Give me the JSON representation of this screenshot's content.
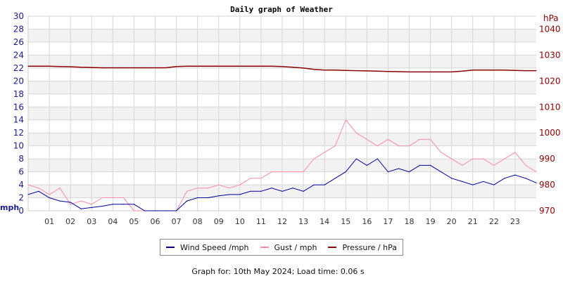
{
  "chart_data": {
    "type": "line",
    "title": "Daily graph of Weather",
    "xlabel": "",
    "ylabel_left": "mph",
    "ylabel_right": "hPa",
    "xlim": [
      0,
      24
    ],
    "ylim_left": [
      0,
      30
    ],
    "ylim_right": [
      970,
      1045
    ],
    "x_ticks": [
      "01",
      "02",
      "03",
      "04",
      "05",
      "06",
      "07",
      "08",
      "09",
      "10",
      "11",
      "12",
      "13",
      "14",
      "15",
      "16",
      "17",
      "18",
      "19",
      "20",
      "21",
      "22",
      "23"
    ],
    "y_ticks_left": [
      0,
      2,
      4,
      6,
      8,
      10,
      12,
      14,
      16,
      18,
      20,
      22,
      24,
      26,
      28,
      30
    ],
    "y_ticks_right": [
      970,
      980,
      990,
      1000,
      1010,
      1020,
      1030,
      1040
    ],
    "grid": true,
    "legend_position": "bottom",
    "x": [
      0,
      0.5,
      1,
      1.5,
      2,
      2.5,
      3,
      3.5,
      4,
      4.5,
      5,
      5.5,
      6,
      6.5,
      7,
      7.5,
      8,
      8.5,
      9,
      9.5,
      10,
      10.5,
      11,
      11.5,
      12,
      12.5,
      13,
      13.5,
      14,
      14.5,
      15,
      15.5,
      16,
      16.5,
      17,
      17.5,
      18,
      18.5,
      19,
      19.5,
      20,
      20.5,
      21,
      21.5,
      22,
      22.5,
      23,
      23.5,
      24
    ],
    "series": [
      {
        "name": "Wind Speed /mph",
        "axis": "left",
        "color": "#000099",
        "values": [
          2.5,
          3,
          2,
          1.5,
          1.3,
          0.3,
          0.5,
          0.7,
          1,
          1,
          1,
          0,
          0,
          0,
          0,
          1.5,
          2,
          2,
          2.3,
          2.5,
          2.5,
          3,
          3,
          3.5,
          3,
          3.5,
          3,
          4,
          4,
          5,
          6,
          8,
          7,
          8,
          6,
          6.5,
          6,
          7,
          7,
          6,
          5,
          4.5,
          4,
          4.5,
          4,
          5,
          5.5,
          5,
          4.3
        ]
      },
      {
        "name": "Gust / mph",
        "axis": "left",
        "color": "#ff88aa",
        "values": [
          4,
          3.5,
          2.5,
          3.5,
          1,
          1.5,
          1,
          2,
          2,
          2,
          0,
          0,
          0,
          0,
          0,
          3,
          3.5,
          3.5,
          4,
          3.5,
          4,
          5,
          5,
          6,
          6,
          6,
          6,
          8,
          9,
          10,
          14,
          12,
          11,
          10,
          11,
          10,
          10,
          11,
          11,
          9,
          8,
          7,
          8,
          8,
          7,
          8,
          9,
          7,
          6
        ]
      },
      {
        "name": "Pressure / hPa",
        "axis": "right",
        "color": "#8b0000",
        "values": [
          1025.7,
          1025.7,
          1025.7,
          1025.6,
          1025.5,
          1025.3,
          1025.2,
          1025.1,
          1025.1,
          1025.1,
          1025.1,
          1025.1,
          1025.1,
          1025.1,
          1025.6,
          1025.7,
          1025.7,
          1025.7,
          1025.7,
          1025.7,
          1025.7,
          1025.7,
          1025.7,
          1025.7,
          1025.6,
          1025.3,
          1025,
          1024.5,
          1024.2,
          1024.2,
          1024.1,
          1024,
          1023.9,
          1023.8,
          1023.7,
          1023.6,
          1023.5,
          1023.5,
          1023.5,
          1023.5,
          1023.5,
          1023.8,
          1024.2,
          1024.2,
          1024.2,
          1024.2,
          1024.1,
          1024,
          1024
        ]
      }
    ]
  },
  "legend": {
    "items": [
      {
        "label": "Wind Speed /mph",
        "color": "#000099"
      },
      {
        "label": "Gust / mph",
        "color": "#ff88aa"
      },
      {
        "label": "Pressure / hPa",
        "color": "#8b0000"
      }
    ]
  },
  "footer": "Graph for: 10th May 2024; Load time: 0.06 s"
}
